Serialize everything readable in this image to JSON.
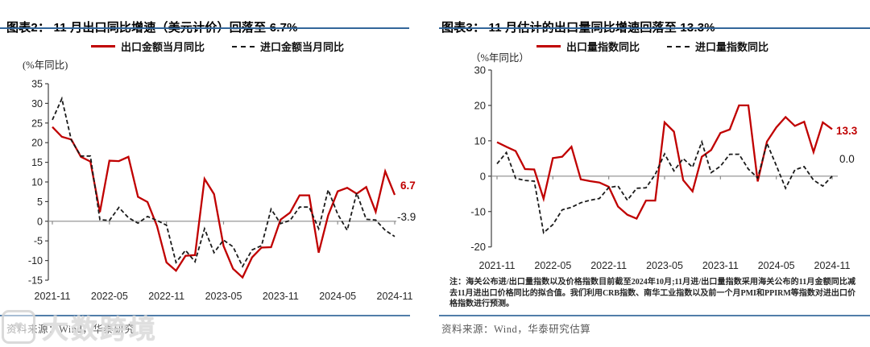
{
  "panels": [
    {
      "source": "资料来源：Wind，华泰研究"
    },
    {
      "source": "资料来源：Wind，华泰研究估算",
      "note": "注：海关公布进/出口量指数以及价格指数目前截至2024年10月;11月进/出口量指数采用海关公布的11月金额同比减去11月进出口价格同比的拟合值。我们利用CRB指数、南华工业指数以及前一个月PMI和PPIRM等指数对进出口价格指数进行预测。"
    }
  ],
  "watermark": {
    "text": "大数跨境",
    "logo_icon": "heart-logo-icon",
    "logo_glyph": "♥"
  },
  "colors": {
    "accent_red": "#C00000",
    "line_black": "#1A1A1A",
    "rule_blue": "#33669A",
    "source_gray": "#595959",
    "axis_gray": "#404040",
    "zero_line_gray": "#8C8C8C",
    "tick_label": "#262626",
    "watermark_gray": "#DCDCDC"
  },
  "chart_data": [
    {
      "type": "line",
      "title": "图表2： 11 月出口同比增速（美元计价）回落至 6.7%",
      "ylabel": "(%年同比)",
      "xlabel": "",
      "ylim": [
        -15,
        35
      ],
      "ytick_step": 5,
      "grid": false,
      "legend_position": "top-center",
      "x_tick_labels": [
        "2021-11",
        "2022-05",
        "2022-11",
        "2023-05",
        "2023-11",
        "2024-05",
        "2024-11"
      ],
      "x_tick_indices": [
        0,
        6,
        12,
        18,
        24,
        30,
        36
      ],
      "series": [
        {
          "name": "出口金额当月同比",
          "style": "solid",
          "color": "#C00000",
          "values": [
            24.0,
            21.5,
            20.8,
            16.4,
            15.2,
            2.3,
            15.4,
            15.3,
            16.4,
            6.2,
            4.9,
            -1.2,
            -10.5,
            -12.6,
            -8.8,
            -8.6,
            10.8,
            6.9,
            -6.3,
            -12.1,
            -14.3,
            -9.2,
            -6.7,
            -6.6,
            0.4,
            2.2,
            6.6,
            6.6,
            -8.0,
            1.5,
            7.6,
            8.5,
            7.0,
            8.7,
            2.4,
            12.7,
            6.7
          ]
        },
        {
          "name": "进口金额当月同比",
          "style": "dashed",
          "color": "#1A1A1A",
          "values": [
            25.8,
            31.2,
            20.6,
            16.6,
            16.6,
            0.4,
            0.2,
            3.5,
            0.9,
            -0.5,
            1.2,
            0.2,
            -1.0,
            -10.5,
            -7.4,
            -10.3,
            -1.9,
            -8.0,
            -4.8,
            -6.5,
            -11.5,
            -7.3,
            -6.2,
            3.1,
            -0.6,
            0.2,
            3.6,
            3.6,
            -1.9,
            8.0,
            1.8,
            -2.3,
            7.2,
            0.5,
            0.3,
            -2.3,
            -3.9
          ]
        }
      ],
      "end_labels": [
        {
          "text": "6.7",
          "color": "#C00000",
          "bold": true
        },
        {
          "text": "-3.9",
          "color": "#1A1A1A",
          "bold": false
        }
      ]
    },
    {
      "type": "line",
      "title": "图表3： 11 月估计的出口量同比增速回落至 13.3%",
      "ylabel": "（%年同比）",
      "xlabel": "",
      "ylim": [
        -20,
        30
      ],
      "ytick_step": 10,
      "grid": false,
      "legend_position": "top-center",
      "x_tick_labels": [
        "2021-11",
        "2022-05",
        "2022-11",
        "2023-05",
        "2023-11",
        "2024-05",
        "2024-11"
      ],
      "x_tick_indices": [
        0,
        6,
        12,
        18,
        24,
        30,
        36
      ],
      "series": [
        {
          "name": "出口量指数同比",
          "style": "solid",
          "color": "#C00000",
          "values": [
            9.6,
            8.3,
            7.1,
            2.0,
            1.9,
            -6.4,
            5.1,
            5.5,
            8.3,
            -0.9,
            -1.4,
            -1.8,
            -3.0,
            -8.6,
            -10.9,
            -12.0,
            -6.9,
            -6.9,
            15.2,
            12.6,
            -1.1,
            -4.3,
            5.5,
            7.4,
            12.2,
            13.2,
            20.0,
            20.0,
            -1.5,
            9.8,
            13.8,
            16.7,
            14.2,
            15.4,
            6.8,
            15.2,
            13.3
          ]
        },
        {
          "name": "进口量指数同比",
          "style": "dashed",
          "color": "#1A1A1A",
          "values": [
            3.5,
            6.7,
            -0.6,
            -1.2,
            -1.4,
            -16.0,
            -13.7,
            -9.5,
            -8.8,
            -7.5,
            -6.8,
            -6.3,
            -3.2,
            -2.8,
            -6.8,
            -3.4,
            -3.3,
            0.5,
            6.3,
            1.5,
            5.0,
            2.5,
            9.7,
            1.0,
            2.8,
            6.2,
            6.2,
            2.0,
            -0.5,
            9.3,
            3.0,
            -3.4,
            1.8,
            2.7,
            -1.1,
            -2.8,
            0.0
          ]
        }
      ],
      "end_labels": [
        {
          "text": "13.3",
          "color": "#C00000",
          "bold": true
        },
        {
          "text": "0.0",
          "color": "#1A1A1A",
          "bold": false
        }
      ]
    }
  ]
}
